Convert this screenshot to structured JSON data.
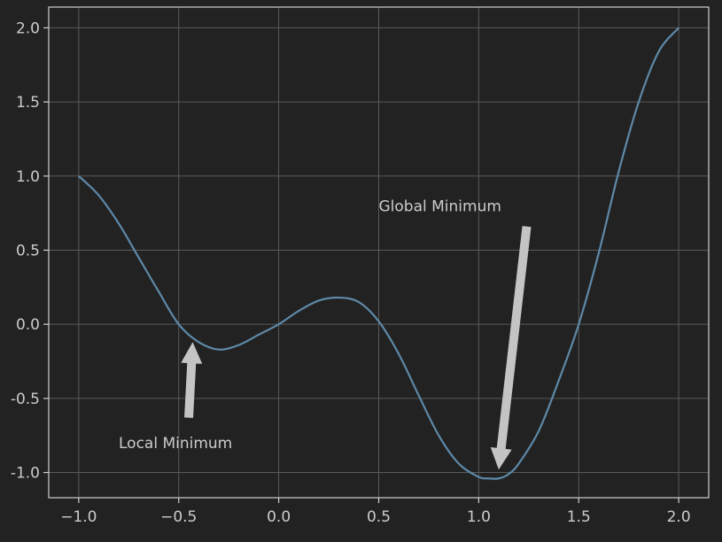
{
  "chart_data": {
    "type": "line",
    "title": "",
    "xlabel": "",
    "ylabel": "",
    "xlim": [
      -1.15,
      2.15
    ],
    "ylim": [
      -1.17,
      2.14
    ],
    "grid": true,
    "xticks": [
      -1.0,
      -0.5,
      0.0,
      0.5,
      1.0,
      1.5,
      2.0
    ],
    "xtick_labels": [
      "−1.0",
      "−0.5",
      "0.0",
      "0.5",
      "1.0",
      "1.5",
      "2.0"
    ],
    "yticks": [
      -1.0,
      -0.5,
      0.0,
      0.5,
      1.0,
      1.5,
      2.0
    ],
    "ytick_labels": [
      "-1.0",
      "-0.5",
      "0.0",
      "0.5",
      "1.0",
      "1.5",
      "2.0"
    ],
    "series": [
      {
        "color": "#5e89a8",
        "x": [
          -1.0,
          -0.9,
          -0.8,
          -0.7,
          -0.6,
          -0.5,
          -0.4,
          -0.3,
          -0.2,
          -0.1,
          0.0,
          0.1,
          0.2,
          0.3,
          0.4,
          0.5,
          0.6,
          0.7,
          0.8,
          0.9,
          1.0,
          1.05,
          1.1,
          1.15,
          1.2,
          1.3,
          1.4,
          1.5,
          1.6,
          1.7,
          1.8,
          1.9,
          2.0
        ],
        "y": [
          1.0,
          0.87,
          0.68,
          0.45,
          0.22,
          0.0,
          -0.12,
          -0.17,
          -0.14,
          -0.07,
          0.0,
          0.09,
          0.16,
          0.18,
          0.15,
          0.02,
          -0.2,
          -0.48,
          -0.75,
          -0.94,
          -1.03,
          -1.04,
          -1.04,
          -1.01,
          -0.94,
          -0.72,
          -0.38,
          0.0,
          0.48,
          1.03,
          1.5,
          1.84,
          2.0
        ]
      }
    ],
    "annotations": [
      {
        "text": "Local Minimum",
        "text_xy": [
          -0.8,
          -0.8
        ],
        "arrow_start": [
          -0.45,
          -0.63
        ],
        "arrow_end": [
          -0.43,
          -0.12
        ]
      },
      {
        "text": "Global Minimum",
        "text_xy": [
          0.5,
          0.8
        ],
        "arrow_start": [
          1.24,
          0.66
        ],
        "arrow_end": [
          1.1,
          -0.98
        ]
      }
    ]
  }
}
